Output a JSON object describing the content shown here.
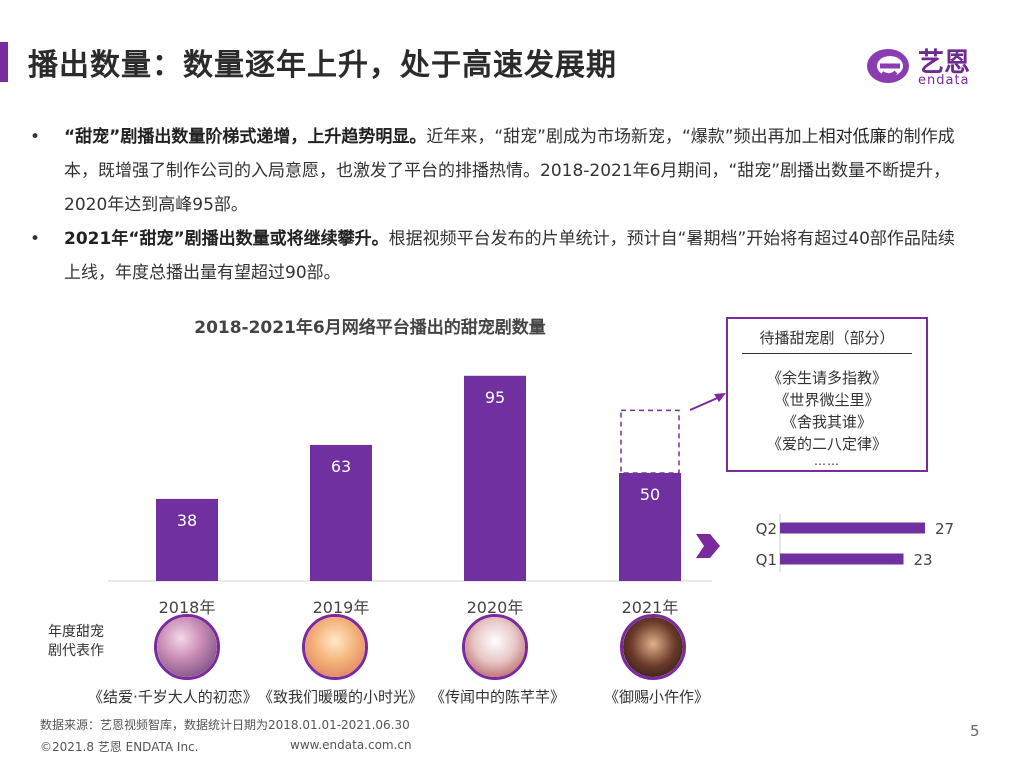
{
  "header": {
    "title": "播出数量：数量逐年上升，处于高速发展期",
    "logo_cn": "艺恩",
    "logo_en": "endata"
  },
  "bullets": [
    {
      "bold": "“甜宠”剧播出数量阶梯式递增，上升趋势明显。",
      "text_a": "近年来，“甜宠”剧成为市场新宠，“爆款”频出再加上",
      "highlight": "相对低廉",
      "text_b": "的制作成本，既增强了制作公司的入局意愿，也激发了平台的排播热情。2018-2021年6月期间，“甜宠”剧播出数量不断提升，2020年达到高峰95部。"
    },
    {
      "bold": "2021年“甜宠”剧播出数量或将继续攀升。",
      "text_a": "根据视频平台发布的片单统计，预计自“暑期档”开始将有超过40部作品陆续上线，年度总播出量有望超过90部。",
      "highlight": "",
      "text_b": ""
    }
  ],
  "chart_data": [
    {
      "type": "bar",
      "title": "2018-2021年6月网络平台播出的甜宠剧数量",
      "categories": [
        "2018年",
        "2019年",
        "2020年",
        "2021年"
      ],
      "values": [
        38,
        63,
        95,
        50
      ],
      "ylim": [
        0,
        100
      ],
      "bar_color": "#7030a0",
      "projected": {
        "category": "2021年",
        "style": "dashed outline",
        "color": "#7030a0"
      }
    },
    {
      "type": "bar",
      "orientation": "horizontal",
      "categories": [
        "Q2",
        "Q1"
      ],
      "values": [
        27,
        23
      ],
      "bar_color": "#7030a0"
    }
  ],
  "upcoming": {
    "title": "待播甜宠剧（部分）",
    "items": [
      "《余生请多指教》",
      "《世界微尘里》",
      "《舍我其谁》",
      "《爱的二八定律》"
    ],
    "more": "……"
  },
  "representatives": {
    "label": "年度甜宠剧代表作",
    "label_line1": "年度甜宠",
    "label_line2": "剧代表作",
    "titles": [
      "《结爱·千岁大人的初恋》",
      "《致我们暖暖的小时光》",
      "《传闻中的陈芊芊》",
      "《御赐小仵作》"
    ]
  },
  "footer": {
    "source": "数据来源：艺恩视频智库，数据统计日期为2018.01.01-2021.06.30",
    "copyright": "©2021.8 艺恩 ENDATA Inc.",
    "url": "www.endata.com.cn",
    "page": "5"
  },
  "colors": {
    "accent": "#7b2a9e",
    "bar": "#7030a0"
  }
}
